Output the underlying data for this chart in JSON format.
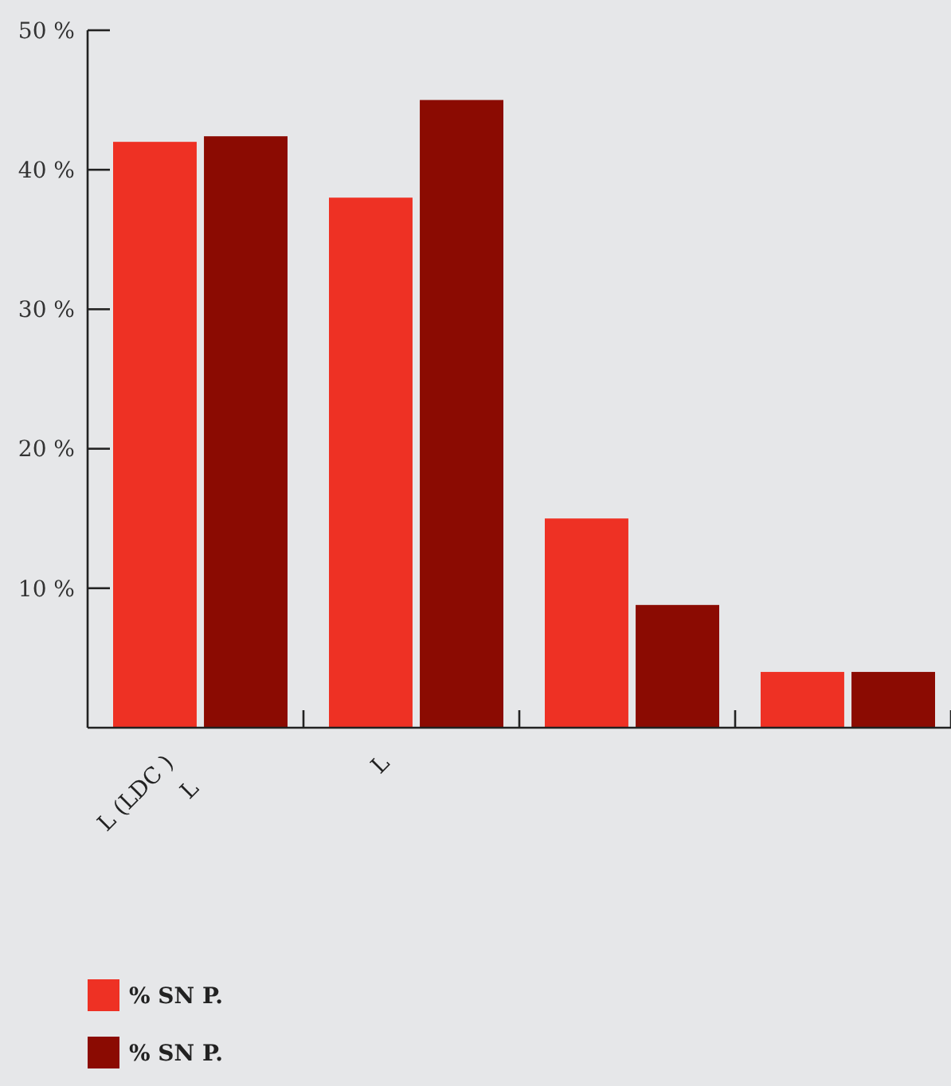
{
  "chart_data": {
    "type": "bar",
    "categories": [
      "L (LDC )\nL",
      "L",
      null,
      null
    ],
    "series": [
      {
        "name": "% SN P.",
        "color": "#ee3124",
        "values": [
          42,
          38,
          15,
          4
        ]
      },
      {
        "name": "% SN P.",
        "color": "#8b0b02",
        "values": [
          42.4,
          45,
          8.8,
          4
        ]
      }
    ],
    "ylim": [
      0,
      50
    ],
    "yticks": [
      {
        "value": 10,
        "label": "10 %"
      },
      {
        "value": 20,
        "label": "20 %"
      },
      {
        "value": 30,
        "label": "30 %"
      },
      {
        "value": 40,
        "label": "40 %"
      },
      {
        "value": 50,
        "label": "50 %"
      }
    ],
    "grid": false,
    "legend": "bottom"
  }
}
